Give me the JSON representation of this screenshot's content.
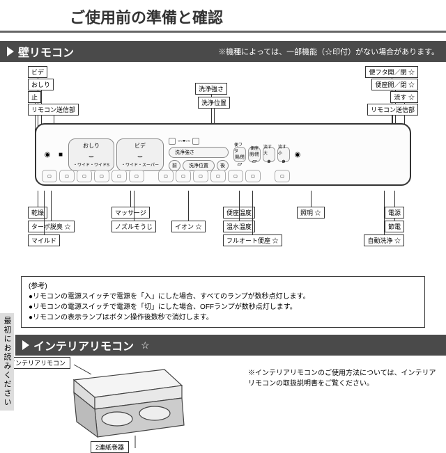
{
  "colors": {
    "bar": "#4a4a4a",
    "border": "#333333",
    "grey": "#888888",
    "light": "#f0f0f0"
  },
  "page_title": "ご使用前の準備と確認",
  "sidebar_text": "最初にお読みください",
  "section1": {
    "name": "壁リモコン",
    "note": "※機種によっては、一部機能（☆印付）がない場合があります。"
  },
  "section2": {
    "name": "インテリアリモコン",
    "star": "☆",
    "note": "※インテリアリモコンのご使用方法については、インテリアリモコンの取扱説明書をご覧ください。",
    "label1": "インテリアリモコン",
    "label2": "2連紙巻器"
  },
  "left_labels": [
    "ビデ",
    "おしり",
    "止",
    "リモコン送信部"
  ],
  "top_mid": [
    "洗浄強さ",
    "洗浄位置"
  ],
  "right_labels": [
    [
      "便フタ開／閉",
      "☆"
    ],
    [
      "便座開／閉",
      "☆"
    ],
    [
      "流す",
      "☆"
    ],
    [
      "リモコン送信部",
      ""
    ]
  ],
  "remote_buttons": {
    "stop": "■",
    "oshiri": "おしり",
    "oshiri_sub": "・ワイド・ワイドS",
    "bidet": "ビデ",
    "bidet_sub": "・ワイド・スーパー",
    "strength": "洗浄強さ",
    "position": "洗浄位置",
    "front": "前",
    "back": "後",
    "lid": "便フタ",
    "seat_oc": "便座",
    "open": "開/閉",
    "flush_big": "流す 大",
    "flush_small": "流す 小"
  },
  "bottom_left": [
    [
      "乾燥",
      ""
    ],
    [
      "ターボ脱臭",
      "☆"
    ],
    [
      "マイルド",
      ""
    ],
    [
      "マッサージ",
      ""
    ],
    [
      "ノズルそうじ",
      ""
    ],
    [
      "イオン",
      "☆"
    ]
  ],
  "bottom_right": [
    [
      "便座温度",
      ""
    ],
    [
      "温水温度",
      ""
    ],
    [
      "フルオート便座",
      "☆"
    ],
    [
      "照明",
      "☆"
    ],
    [
      "節電",
      ""
    ],
    [
      "自動洗浄",
      "☆"
    ],
    [
      "電源",
      ""
    ]
  ],
  "reference": {
    "header": "(参考)",
    "lines": [
      "●リモコンの電源スイッチで電源を「入」にした場合、すべてのランプが数秒点灯します。",
      "●リモコンの電源スイッチで電源を「切」にした場合、OFFランプが数秒点灯します。",
      "●リモコンの表示ランプはボタン操作後数秒で消灯します。"
    ]
  },
  "small_row": [
    "乾燥",
    "ターボ脱臭",
    "マイルド",
    "ノズルそうじ",
    "マッサージ",
    "イオン",
    "",
    "便座温度",
    "温水温度",
    "フルオート",
    "照明",
    "自動洗浄",
    "節電",
    "",
    "電源"
  ]
}
